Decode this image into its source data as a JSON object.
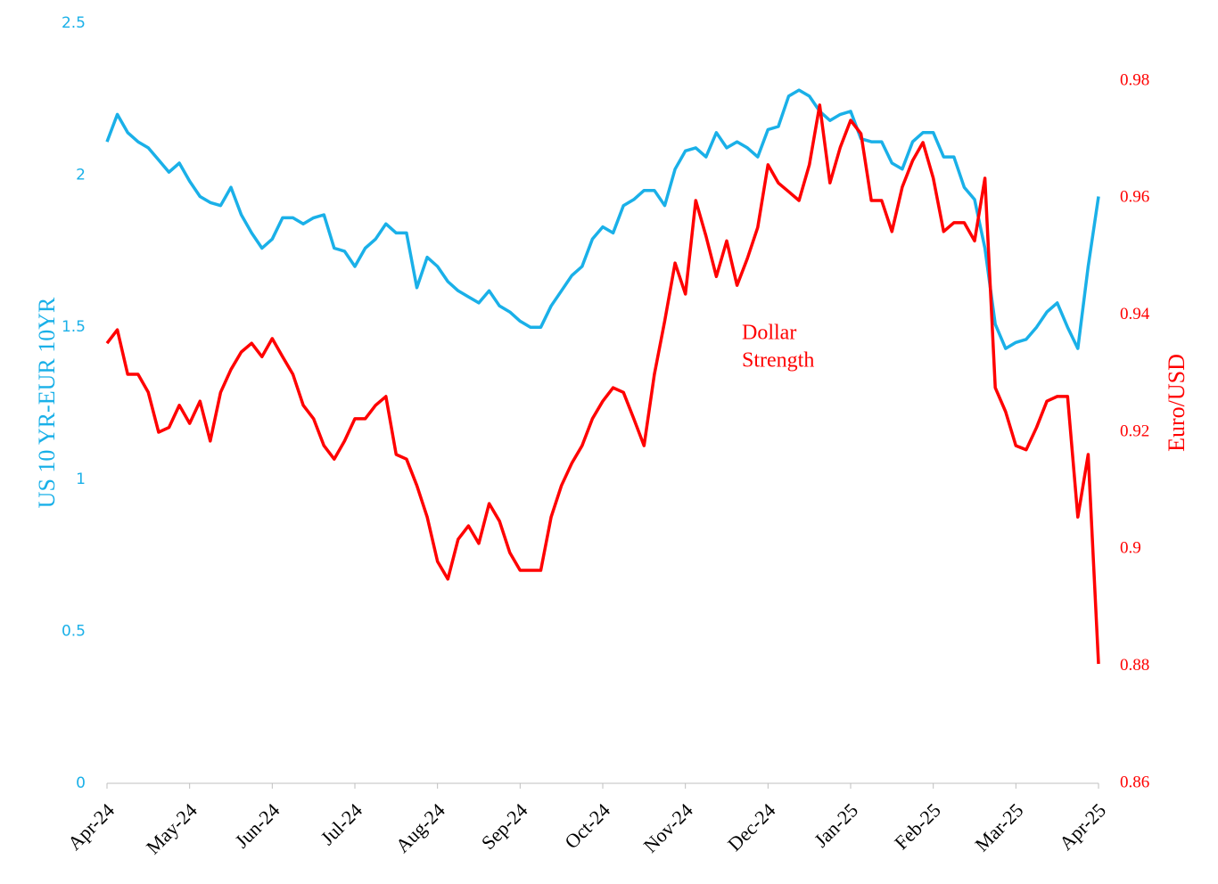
{
  "chart_data": {
    "type": "line",
    "xticks": [
      "Apr-24",
      "May-24",
      "Jun-24",
      "Jul-24",
      "Aug-24",
      "Sep-24",
      "Oct-24",
      "Nov-24",
      "Dec-24",
      "Jan-25",
      "Feb-25",
      "Mar-25",
      "Apr-25"
    ],
    "ylabel": "US 10 YR-EUR 10YR",
    "y2label": "Euro/USD",
    "annotation": [
      "Dollar",
      "Strength"
    ],
    "annotation_color": "#ff0000",
    "ylim": [
      0,
      2.5
    ],
    "yticks": [
      0,
      0.5,
      1,
      1.5,
      2,
      2.5
    ],
    "y2lim": [
      0.86,
      0.98
    ],
    "y2ticks": [
      0.86,
      0.88,
      0.9,
      0.92,
      0.94,
      0.96,
      0.98
    ],
    "grid": false,
    "series": [
      {
        "color": "#1ab0e8",
        "axis": "y",
        "values": [
          2.11,
          2.2,
          2.14,
          2.11,
          2.09,
          2.05,
          2.01,
          2.04,
          1.98,
          1.93,
          1.91,
          1.9,
          1.96,
          1.87,
          1.81,
          1.76,
          1.79,
          1.86,
          1.86,
          1.84,
          1.86,
          1.87,
          1.76,
          1.75,
          1.7,
          1.76,
          1.79,
          1.84,
          1.81,
          1.81,
          1.63,
          1.73,
          1.7,
          1.65,
          1.62,
          1.6,
          1.58,
          1.62,
          1.57,
          1.55,
          1.52,
          1.5,
          1.5,
          1.57,
          1.62,
          1.67,
          1.7,
          1.79,
          1.83,
          1.81,
          1.9,
          1.92,
          1.95,
          1.95,
          1.9,
          2.02,
          2.08,
          2.09,
          2.06,
          2.14,
          2.09,
          2.11,
          2.09,
          2.06,
          2.15,
          2.16,
          2.26,
          2.28,
          2.26,
          2.21,
          2.18,
          2.2,
          2.21,
          2.12,
          2.11,
          2.11,
          2.04,
          2.02,
          2.11,
          2.14,
          2.14,
          2.06,
          2.06,
          1.96,
          1.92,
          1.76,
          1.51,
          1.43,
          1.45,
          1.46,
          1.5,
          1.55,
          1.58,
          1.5,
          1.43,
          1.7,
          1.93
        ]
      },
      {
        "color": "#ff0000",
        "axis": "y2",
        "values": [
          0.9352,
          0.9375,
          0.9299,
          0.9299,
          0.9268,
          0.92,
          0.9208,
          0.9246,
          0.9215,
          0.9253,
          0.9185,
          0.9268,
          0.9307,
          0.9337,
          0.9352,
          0.9329,
          0.936,
          0.9329,
          0.9299,
          0.9246,
          0.9223,
          0.9177,
          0.9154,
          0.9185,
          0.9223,
          0.9223,
          0.9246,
          0.9261,
          0.9162,
          0.9154,
          0.9109,
          0.9055,
          0.8979,
          0.8949,
          0.9017,
          0.904,
          0.901,
          0.9078,
          0.9048,
          0.8994,
          0.8964,
          0.8964,
          0.8964,
          0.9055,
          0.9109,
          0.9147,
          0.9177,
          0.9223,
          0.9253,
          0.9276,
          0.9268,
          0.9223,
          0.9177,
          0.9299,
          0.939,
          0.9489,
          0.9436,
          0.9596,
          0.9535,
          0.9466,
          0.9527,
          0.9451,
          0.9497,
          0.955,
          0.9657,
          0.9626,
          0.9611,
          0.9596,
          0.9657,
          0.9759,
          0.9626,
          0.9687,
          0.9733,
          0.971,
          0.9596,
          0.9596,
          0.9543,
          0.9619,
          0.9664,
          0.9695,
          0.9634,
          0.9543,
          0.9558,
          0.9558,
          0.9527,
          0.9634,
          0.9276,
          0.9235,
          0.9177,
          0.917,
          0.9208,
          0.9253,
          0.9261,
          0.9261,
          0.9055,
          0.9162,
          0.8804
        ]
      }
    ]
  }
}
